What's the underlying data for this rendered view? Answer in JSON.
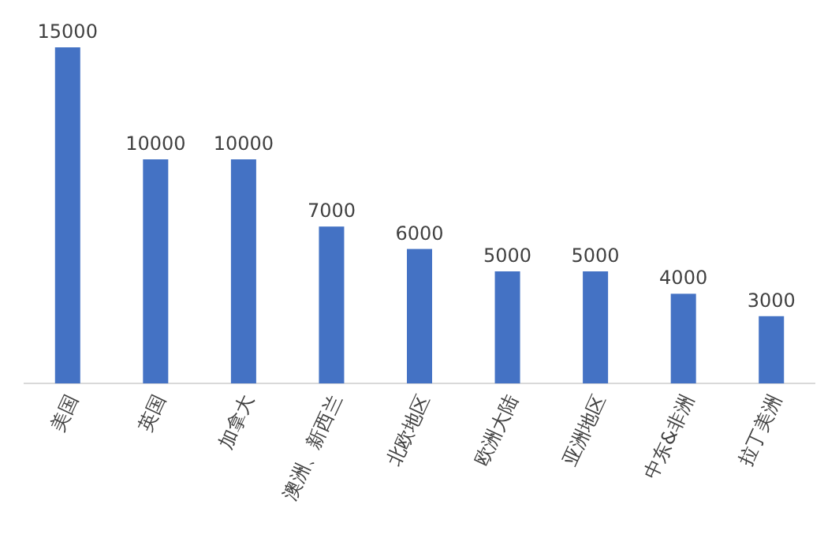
{
  "chart_data": {
    "type": "bar",
    "categories": [
      "美国",
      "英国",
      "加拿大",
      "澳洲、新西兰",
      "北欧地区",
      "欧洲大陆",
      "亚洲地区",
      "中东&非洲",
      "拉丁美洲"
    ],
    "values": [
      15000,
      10000,
      10000,
      7000,
      6000,
      5000,
      5000,
      4000,
      3000
    ],
    "color": "#4472c4",
    "data_labels": true
  }
}
